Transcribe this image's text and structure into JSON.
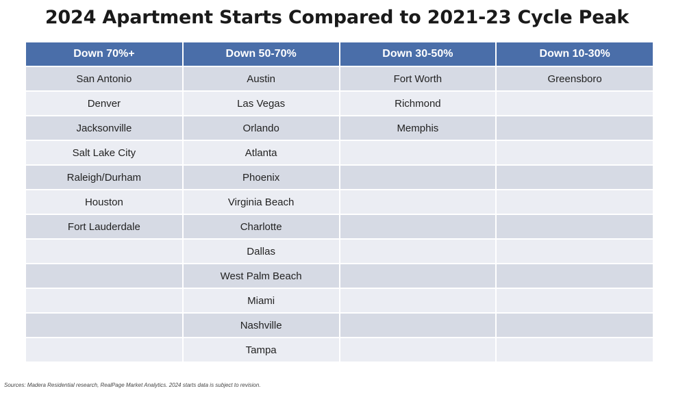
{
  "title": "2024 Apartment Starts Compared to 2021-23 Cycle Peak",
  "table": {
    "headers": [
      "Down 70%+",
      "Down 50-70%",
      "Down 30-50%",
      "Down 10-30%"
    ],
    "rows": [
      [
        "San Antonio",
        "Austin",
        "Fort Worth",
        "Greensboro"
      ],
      [
        "Denver",
        "Las Vegas",
        "Richmond",
        ""
      ],
      [
        "Jacksonville",
        "Orlando",
        "Memphis",
        ""
      ],
      [
        "Salt Lake City",
        "Atlanta",
        "",
        ""
      ],
      [
        "Raleigh/Durham",
        "Phoenix",
        "",
        ""
      ],
      [
        "Houston",
        "Virginia Beach",
        "",
        ""
      ],
      [
        "Fort Lauderdale",
        "Charlotte",
        "",
        ""
      ],
      [
        "",
        "Dallas",
        "",
        ""
      ],
      [
        "",
        "West Palm Beach",
        "",
        ""
      ],
      [
        "",
        "Miami",
        "",
        ""
      ],
      [
        "",
        "Nashville",
        "",
        ""
      ],
      [
        "",
        "Tampa",
        "",
        ""
      ]
    ]
  },
  "source": "Sources: Madera Residential research, RealPage Market Analytics. 2024 starts data is subject to revision.",
  "colors": {
    "header_bg": "#4a6ea9",
    "row_dark": "#d6dae4",
    "row_light": "#ebedf3"
  }
}
